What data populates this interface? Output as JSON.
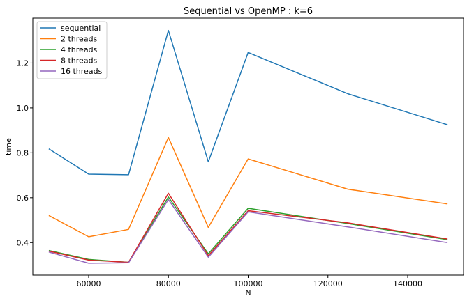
{
  "chart_data": {
    "type": "line",
    "title": "Sequential vs OpenMP : k=6",
    "xlabel": "N",
    "ylabel": "time",
    "x": [
      50000,
      60000,
      70000,
      80000,
      90000,
      100000,
      125000,
      150000
    ],
    "xlim": [
      46000,
      154000
    ],
    "ylim": [
      0.255,
      1.4
    ],
    "xticks": [
      60000,
      80000,
      100000,
      120000,
      140000
    ],
    "yticks": [
      0.4,
      0.6,
      0.8,
      1.0,
      1.2
    ],
    "grid": false,
    "legend_position": "top-left",
    "series": [
      {
        "name": "sequential",
        "color": "#1f77b4",
        "values": [
          0.818,
          0.705,
          0.702,
          1.345,
          0.76,
          1.247,
          1.063,
          0.925
        ]
      },
      {
        "name": "2 threads",
        "color": "#ff7f0e",
        "values": [
          0.521,
          0.426,
          0.459,
          0.868,
          0.468,
          0.773,
          0.638,
          0.572
        ]
      },
      {
        "name": "4 threads",
        "color": "#2ca02c",
        "values": [
          0.365,
          0.325,
          0.312,
          0.603,
          0.35,
          0.553,
          0.485,
          0.413
        ]
      },
      {
        "name": "8 threads",
        "color": "#d62728",
        "values": [
          0.362,
          0.322,
          0.312,
          0.62,
          0.342,
          0.542,
          0.488,
          0.416
        ]
      },
      {
        "name": "16 threads",
        "color": "#9467bd",
        "values": [
          0.358,
          0.308,
          0.31,
          0.592,
          0.335,
          0.537,
          0.47,
          0.4
        ]
      }
    ]
  }
}
